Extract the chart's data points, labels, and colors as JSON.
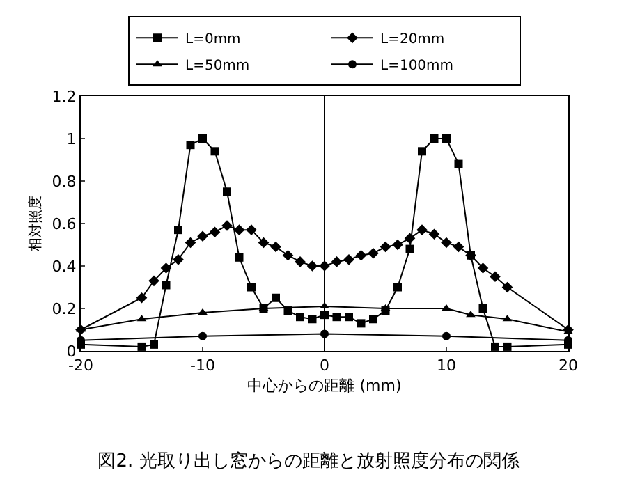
{
  "chart_data": {
    "type": "line",
    "title": "図2. 光取り出し窓からの距離と放射照度分布の関係",
    "xlabel": "中心からの距離 (mm)",
    "ylabel": "相対照度",
    "series": [
      {
        "name": "L=0mm",
        "color": "#000000",
        "marker": "square",
        "x": [
          -20,
          -15,
          -14,
          -13,
          -12,
          -11,
          -10,
          -9,
          -8,
          -7,
          -6,
          -5,
          -4,
          -3,
          -2,
          -1,
          0,
          1,
          2,
          3,
          4,
          5,
          6,
          7,
          8,
          9,
          10,
          11,
          12,
          13,
          14,
          15,
          20
        ],
        "values": [
          0.03,
          0.02,
          0.03,
          0.31,
          0.57,
          0.97,
          1.0,
          0.94,
          0.75,
          0.44,
          0.3,
          0.2,
          0.25,
          0.19,
          0.16,
          0.15,
          0.17,
          0.16,
          0.16,
          0.13,
          0.15,
          0.19,
          0.3,
          0.48,
          0.94,
          1.0,
          1.0,
          0.88,
          0.45,
          0.2,
          0.02,
          0.02,
          0.03
        ]
      },
      {
        "name": "L=20mm",
        "color": "#000000",
        "marker": "diamond",
        "x": [
          -20,
          -15,
          -14,
          -13,
          -12,
          -11,
          -10,
          -9,
          -8,
          -7,
          -6,
          -5,
          -4,
          -3,
          -2,
          -1,
          0,
          1,
          2,
          3,
          4,
          5,
          6,
          7,
          8,
          9,
          10,
          11,
          12,
          13,
          14,
          15,
          20
        ],
        "values": [
          0.1,
          0.25,
          0.33,
          0.39,
          0.43,
          0.51,
          0.54,
          0.56,
          0.59,
          0.57,
          0.57,
          0.51,
          0.49,
          0.45,
          0.42,
          0.4,
          0.4,
          0.42,
          0.43,
          0.45,
          0.46,
          0.49,
          0.5,
          0.53,
          0.57,
          0.55,
          0.51,
          0.49,
          0.45,
          0.39,
          0.35,
          0.3,
          0.1
        ]
      },
      {
        "name": "L=50mm",
        "color": "#000000",
        "marker": "triangle",
        "x": [
          -20,
          -15,
          -10,
          -5,
          0,
          5,
          10,
          12,
          15,
          20
        ],
        "values": [
          0.1,
          0.15,
          0.18,
          0.2,
          0.21,
          0.2,
          0.2,
          0.17,
          0.15,
          0.09
        ]
      },
      {
        "name": "L=100mm",
        "color": "#000000",
        "marker": "circle",
        "x": [
          -20,
          -10,
          0,
          10,
          20
        ],
        "values": [
          0.05,
          0.07,
          0.08,
          0.07,
          0.05
        ]
      }
    ],
    "xlim": [
      -20,
      20
    ],
    "xticks": [
      -20,
      -10,
      0,
      10,
      20
    ],
    "ylim": [
      0,
      1.2
    ],
    "yticks": [
      0,
      0.2,
      0.4,
      0.6,
      0.8,
      1,
      1.2
    ],
    "ref_lines": [
      {
        "axis": "x",
        "value": 0,
        "color": "#000000"
      }
    ],
    "grid": false,
    "legend": "top",
    "line_style": "solid"
  }
}
